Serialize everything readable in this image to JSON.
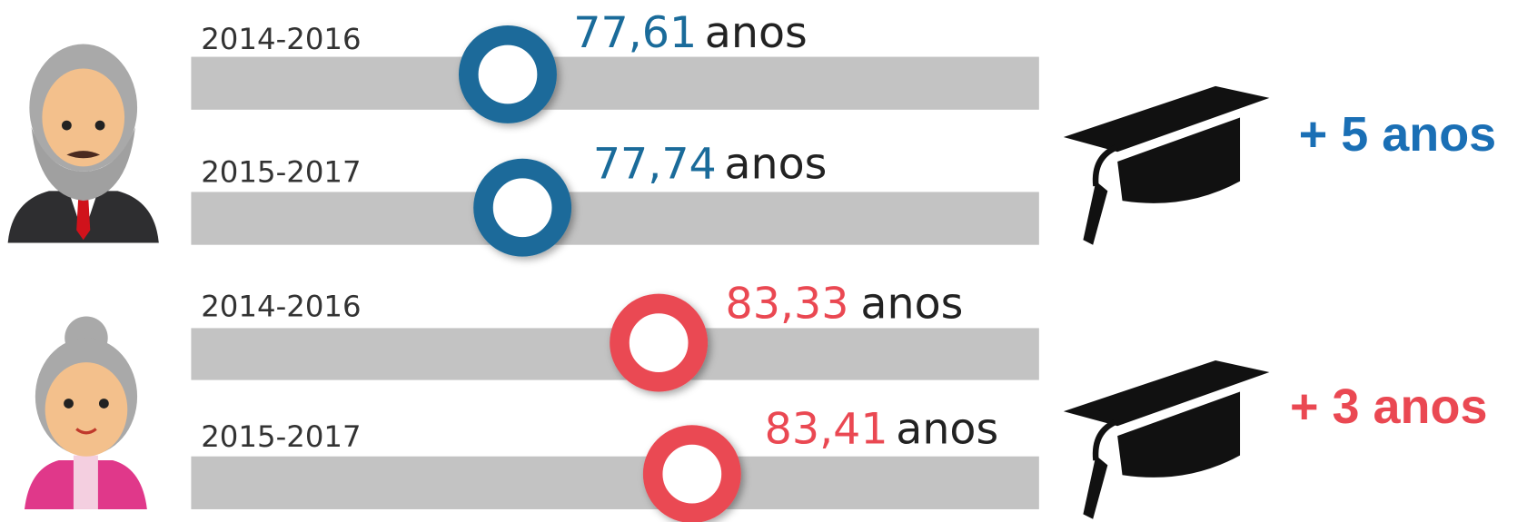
{
  "groups": [
    {
      "rows": [
        {
          "period": "2014-2016",
          "value": "77,61",
          "unit": "anos"
        },
        {
          "period": "2015-2017",
          "value": "77,74",
          "unit": "anos"
        }
      ],
      "gain": "+ 5 anos"
    },
    {
      "rows": [
        {
          "period": "2014-2016",
          "value": "83,33",
          "unit": "anos"
        },
        {
          "period": "2015-2017",
          "value": "83,41",
          "unit": "anos"
        }
      ],
      "gain": "+ 3 anos"
    }
  ]
}
